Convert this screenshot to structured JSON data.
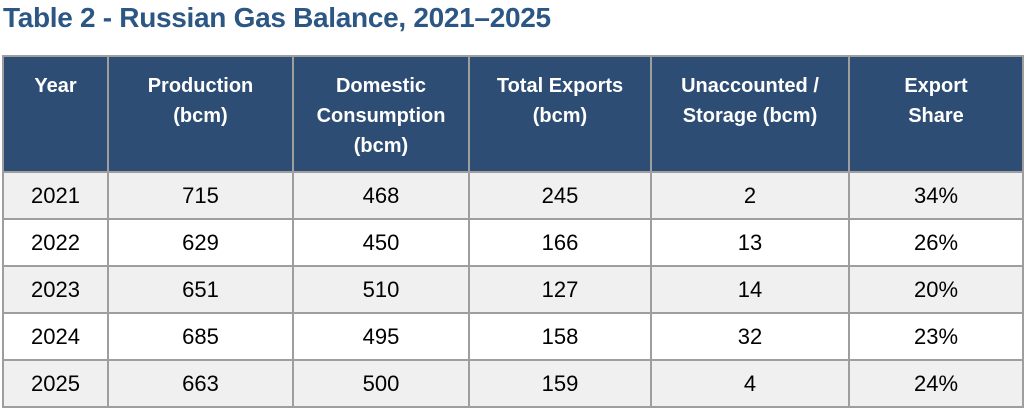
{
  "title": "Table 2 - Russian Gas Balance, 2021–2025",
  "colors": {
    "title_color": "#2C5684",
    "header_bg": "#2D4D74",
    "header_text": "#FFFFFF",
    "row_alt_bg": "#F0F0F0",
    "row_bg": "#FFFFFF",
    "border_color": "#9E9E9E",
    "cell_text": "#000000"
  },
  "table": {
    "columns": [
      {
        "id": "year",
        "label": "Year"
      },
      {
        "id": "production",
        "label": "Production\n(bcm)"
      },
      {
        "id": "domestic_consumption",
        "label": "Domestic\nConsumption\n(bcm)"
      },
      {
        "id": "total_exports",
        "label": "Total Exports\n(bcm)"
      },
      {
        "id": "unaccounted_storage",
        "label": "Unaccounted /\nStorage (bcm)"
      },
      {
        "id": "export_share",
        "label": "Export\nShare"
      }
    ],
    "rows": [
      {
        "year": "2021",
        "production": "715",
        "domestic_consumption": "468",
        "total_exports": "245",
        "unaccounted_storage": "2",
        "export_share": "34%"
      },
      {
        "year": "2022",
        "production": "629",
        "domestic_consumption": "450",
        "total_exports": "166",
        "unaccounted_storage": "13",
        "export_share": "26%"
      },
      {
        "year": "2023",
        "production": "651",
        "domestic_consumption": "510",
        "total_exports": "127",
        "unaccounted_storage": "14",
        "export_share": "20%"
      },
      {
        "year": "2024",
        "production": "685",
        "domestic_consumption": "495",
        "total_exports": "158",
        "unaccounted_storage": "32",
        "export_share": "23%"
      },
      {
        "year": "2025",
        "production": "663",
        "domestic_consumption": "500",
        "total_exports": "159",
        "unaccounted_storage": "4",
        "export_share": "24%"
      }
    ]
  },
  "chart_data": {
    "type": "table",
    "title": "Table 2 - Russian Gas Balance, 2021–2025",
    "columns": [
      "Year",
      "Production (bcm)",
      "Domestic Consumption (bcm)",
      "Total Exports (bcm)",
      "Unaccounted / Storage (bcm)",
      "Export Share"
    ],
    "rows": [
      [
        2021,
        715,
        468,
        245,
        2,
        "34%"
      ],
      [
        2022,
        629,
        450,
        166,
        13,
        "26%"
      ],
      [
        2023,
        651,
        510,
        127,
        14,
        "20%"
      ],
      [
        2024,
        685,
        495,
        158,
        32,
        "23%"
      ],
      [
        2025,
        663,
        500,
        159,
        4,
        "24%"
      ]
    ]
  }
}
